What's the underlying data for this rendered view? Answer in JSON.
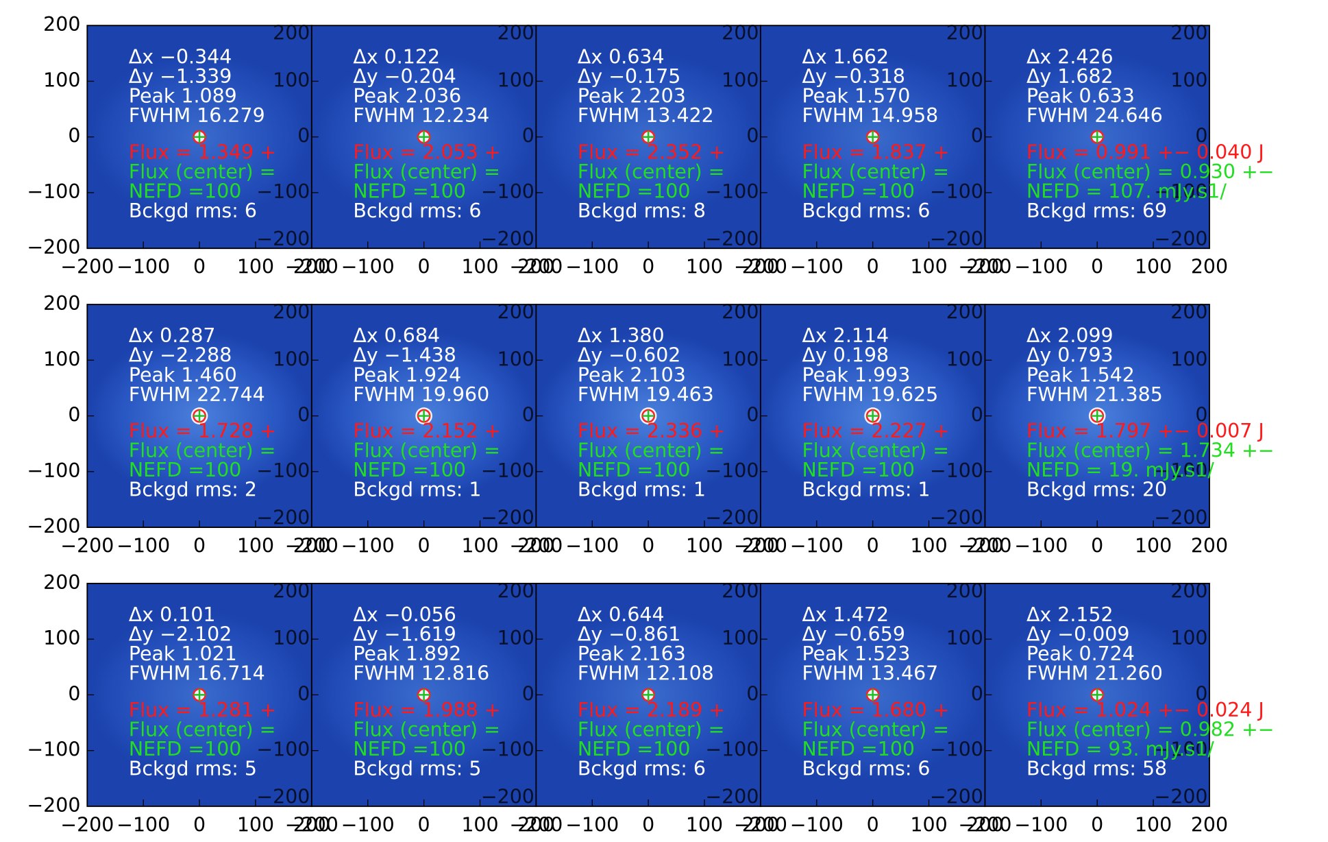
{
  "axes": {
    "ticks": [
      {
        "value": -200,
        "label": "−200"
      },
      {
        "value": -100,
        "label": "−100"
      },
      0,
      100,
      200
    ]
  },
  "panels": [
    {
      "lines": [
        "Δx −0.344",
        "Δy −1.339",
        "Peak 1.089",
        "FWHM 16.279",
        "Flux = 1.349 +",
        "Flux (center) =",
        "NEFD =100",
        "Bckgd rms: 6"
      ]
    },
    {
      "lines": [
        "Δx 0.122",
        "Δy −0.204",
        "Peak 2.036",
        "FWHM 12.234",
        "Flux = 2.053 +",
        "Flux (center) =",
        "NEFD =100",
        "Bckgd rms: 6"
      ]
    },
    {
      "lines": [
        "Δx 0.634",
        "Δy −0.175",
        "Peak 2.203",
        "FWHM 13.422",
        "Flux = 2.352 +",
        "Flux (center) =",
        "NEFD =100",
        "Bckgd rms: 8"
      ]
    },
    {
      "lines": [
        "Δx 1.662",
        "Δy −0.318",
        "Peak 1.570",
        "FWHM 14.958",
        "Flux = 1.837 +",
        "Flux (center) =",
        "NEFD =100",
        "Bckgd rms: 6"
      ]
    },
    {
      "lines": [
        "Δx 2.426",
        "Δy 1.682",
        "Peak 0.633",
        "FWHM 24.646",
        "Flux = 0.991 +− 0.040 J",
        "Flux (center) = 0.930 +−",
        "NEFD = 107. mJy.s1/",
        "Bckgd rms: 69"
      ]
    },
    {
      "lines": [
        "Δx 0.287",
        "Δy −2.288",
        "Peak 1.460",
        "FWHM 22.744",
        "Flux = 1.728 +",
        "Flux (center) =",
        "NEFD =100",
        "Bckgd rms: 2"
      ]
    },
    {
      "lines": [
        "Δx 0.684",
        "Δy −1.438",
        "Peak 1.924",
        "FWHM 19.960",
        "Flux = 2.152 +",
        "Flux (center) =",
        "NEFD =100",
        "Bckgd rms: 1"
      ]
    },
    {
      "lines": [
        "Δx 1.380",
        "Δy −0.602",
        "Peak 2.103",
        "FWHM 19.463",
        "Flux = 2.336 +",
        "Flux (center) =",
        "NEFD =100",
        "Bckgd rms: 1"
      ]
    },
    {
      "lines": [
        "Δx 2.114",
        "Δy 0.198",
        "Peak 1.993",
        "FWHM 19.625",
        "Flux = 2.227 +",
        "Flux (center) =",
        "NEFD =100",
        "Bckgd rms: 1"
      ]
    },
    {
      "lines": [
        "Δx 2.099",
        "Δy 0.793",
        "Peak 1.542",
        "FWHM 21.385",
        "Flux = 1.797 +− 0.007 J",
        "Flux (center) = 1.734 +−",
        "NEFD = 19. mJy.s1/",
        "Bckgd rms: 20"
      ]
    },
    {
      "lines": [
        "Δx 0.101",
        "Δy −2.102",
        "Peak 1.021",
        "FWHM 16.714",
        "Flux = 1.281 +",
        "Flux (center) =",
        "NEFD =100",
        "Bckgd rms: 5"
      ]
    },
    {
      "lines": [
        "Δx −0.056",
        "Δy −1.619",
        "Peak 1.892",
        "FWHM 12.816",
        "Flux = 1.988 +",
        "Flux (center) =",
        "NEFD =100",
        "Bckgd rms: 5"
      ]
    },
    {
      "lines": [
        "Δx 0.644",
        "Δy −0.861",
        "Peak 2.163",
        "FWHM 12.108",
        "Flux = 2.189 +",
        "Flux (center) =",
        "NEFD =100",
        "Bckgd rms: 6"
      ]
    },
    {
      "lines": [
        "Δx 1.472",
        "Δy −0.659",
        "Peak 1.523",
        "FWHM 13.467",
        "Flux = 1.680 +",
        "Flux (center) =",
        "NEFD =100",
        "Bckgd rms: 6"
      ]
    },
    {
      "lines": [
        "Δx 2.152",
        "Δy −0.009",
        "Peak 0.724",
        "FWHM 21.260",
        "Flux = 1.024 +− 0.024 J",
        "Flux (center) = 0.982 +−",
        "NEFD = 93. mJy.s1/",
        "Bckgd rms: 58"
      ]
    }
  ]
}
